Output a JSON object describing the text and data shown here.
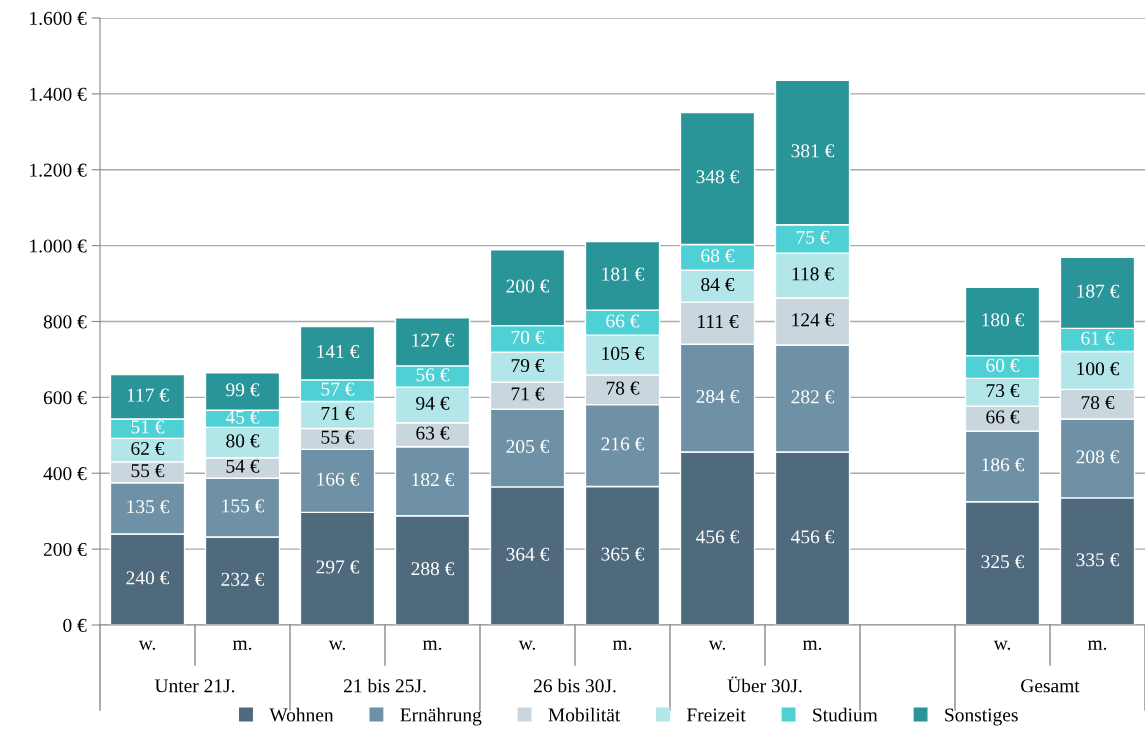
{
  "chart_data": {
    "type": "bar",
    "stacked": true,
    "categories": [
      "w.",
      "m.",
      "w.",
      "m.",
      "w.",
      "m.",
      "w.",
      "m.",
      null,
      "w.",
      "m."
    ],
    "annotations": [
      "Unter 21J.",
      "21 bis 25J.",
      "26 bis 30J.",
      "Über 30J.",
      "Gesamt"
    ],
    "series": [
      {
        "name": "Wohnen",
        "color": "#4f6a7d",
        "values": [
          240,
          232,
          297,
          288,
          364,
          365,
          456,
          456,
          null,
          325,
          335
        ],
        "value_labels": [
          "240 €",
          "232 €",
          "297 €",
          "288 €",
          "364 €",
          "365 €",
          "456 €",
          "456 €",
          null,
          "325 €",
          "335 €"
        ]
      },
      {
        "name": "Ernährung",
        "color": "#6f91a5",
        "values": [
          135,
          155,
          166,
          182,
          205,
          216,
          284,
          282,
          null,
          186,
          208
        ],
        "value_labels": [
          "135 €",
          "155 €",
          "166 €",
          "182 €",
          "205 €",
          "216 €",
          "284 €",
          "282 €",
          null,
          "186 €",
          "208 €"
        ]
      },
      {
        "name": "Mobilität",
        "color": "#c9d6de",
        "values": [
          55,
          54,
          55,
          63,
          71,
          78,
          111,
          124,
          null,
          66,
          78
        ],
        "value_labels": [
          "55 €",
          "54 €",
          "55 €",
          "63 €",
          "71 €",
          "78 €",
          "111 €",
          "124 €",
          null,
          "66 €",
          "78 €"
        ]
      },
      {
        "name": "Freizeit",
        "color": "#b2e6e8",
        "values": [
          62,
          80,
          71,
          94,
          79,
          105,
          84,
          118,
          null,
          73,
          100
        ],
        "value_labels": [
          "62 €",
          "80 €",
          "71 €",
          "94 €",
          "79 €",
          "105 €",
          "84 €",
          "118 €",
          null,
          "73 €",
          "100 €"
        ]
      },
      {
        "name": "Studium",
        "color": "#4fd0d4",
        "values": [
          51,
          45,
          57,
          56,
          70,
          66,
          68,
          75,
          null,
          60,
          61
        ],
        "value_labels": [
          "51 €",
          "45 €",
          "57 €",
          "56 €",
          "70 €",
          "66 €",
          "68 €",
          "75 €",
          null,
          "60 €",
          "61 €"
        ]
      },
      {
        "name": "Sonstiges",
        "color": "#2a9598",
        "values": [
          117,
          99,
          141,
          127,
          200,
          181,
          348,
          381,
          null,
          180,
          187
        ],
        "value_labels": [
          "117 €",
          "99 €",
          "141 €",
          "127 €",
          "200 €",
          "181 €",
          "348 €",
          "381 €",
          null,
          "180 €",
          "187 €"
        ]
      }
    ],
    "ylim": [
      0,
      1600
    ],
    "yticks": [
      {
        "value": 0,
        "label": "0 €"
      },
      {
        "value": 200,
        "label": "200 €"
      },
      {
        "value": 400,
        "label": "400 €"
      },
      {
        "value": 600,
        "label": "600 €"
      },
      {
        "value": 800,
        "label": "800 €"
      },
      {
        "value": 1000,
        "label": "1.000 €"
      },
      {
        "value": 1200,
        "label": "1.200 €"
      },
      {
        "value": 1400,
        "label": "1.400 €"
      },
      {
        "value": 1600,
        "label": "1.600 €"
      }
    ],
    "grid": "y",
    "legend": "bottom"
  }
}
